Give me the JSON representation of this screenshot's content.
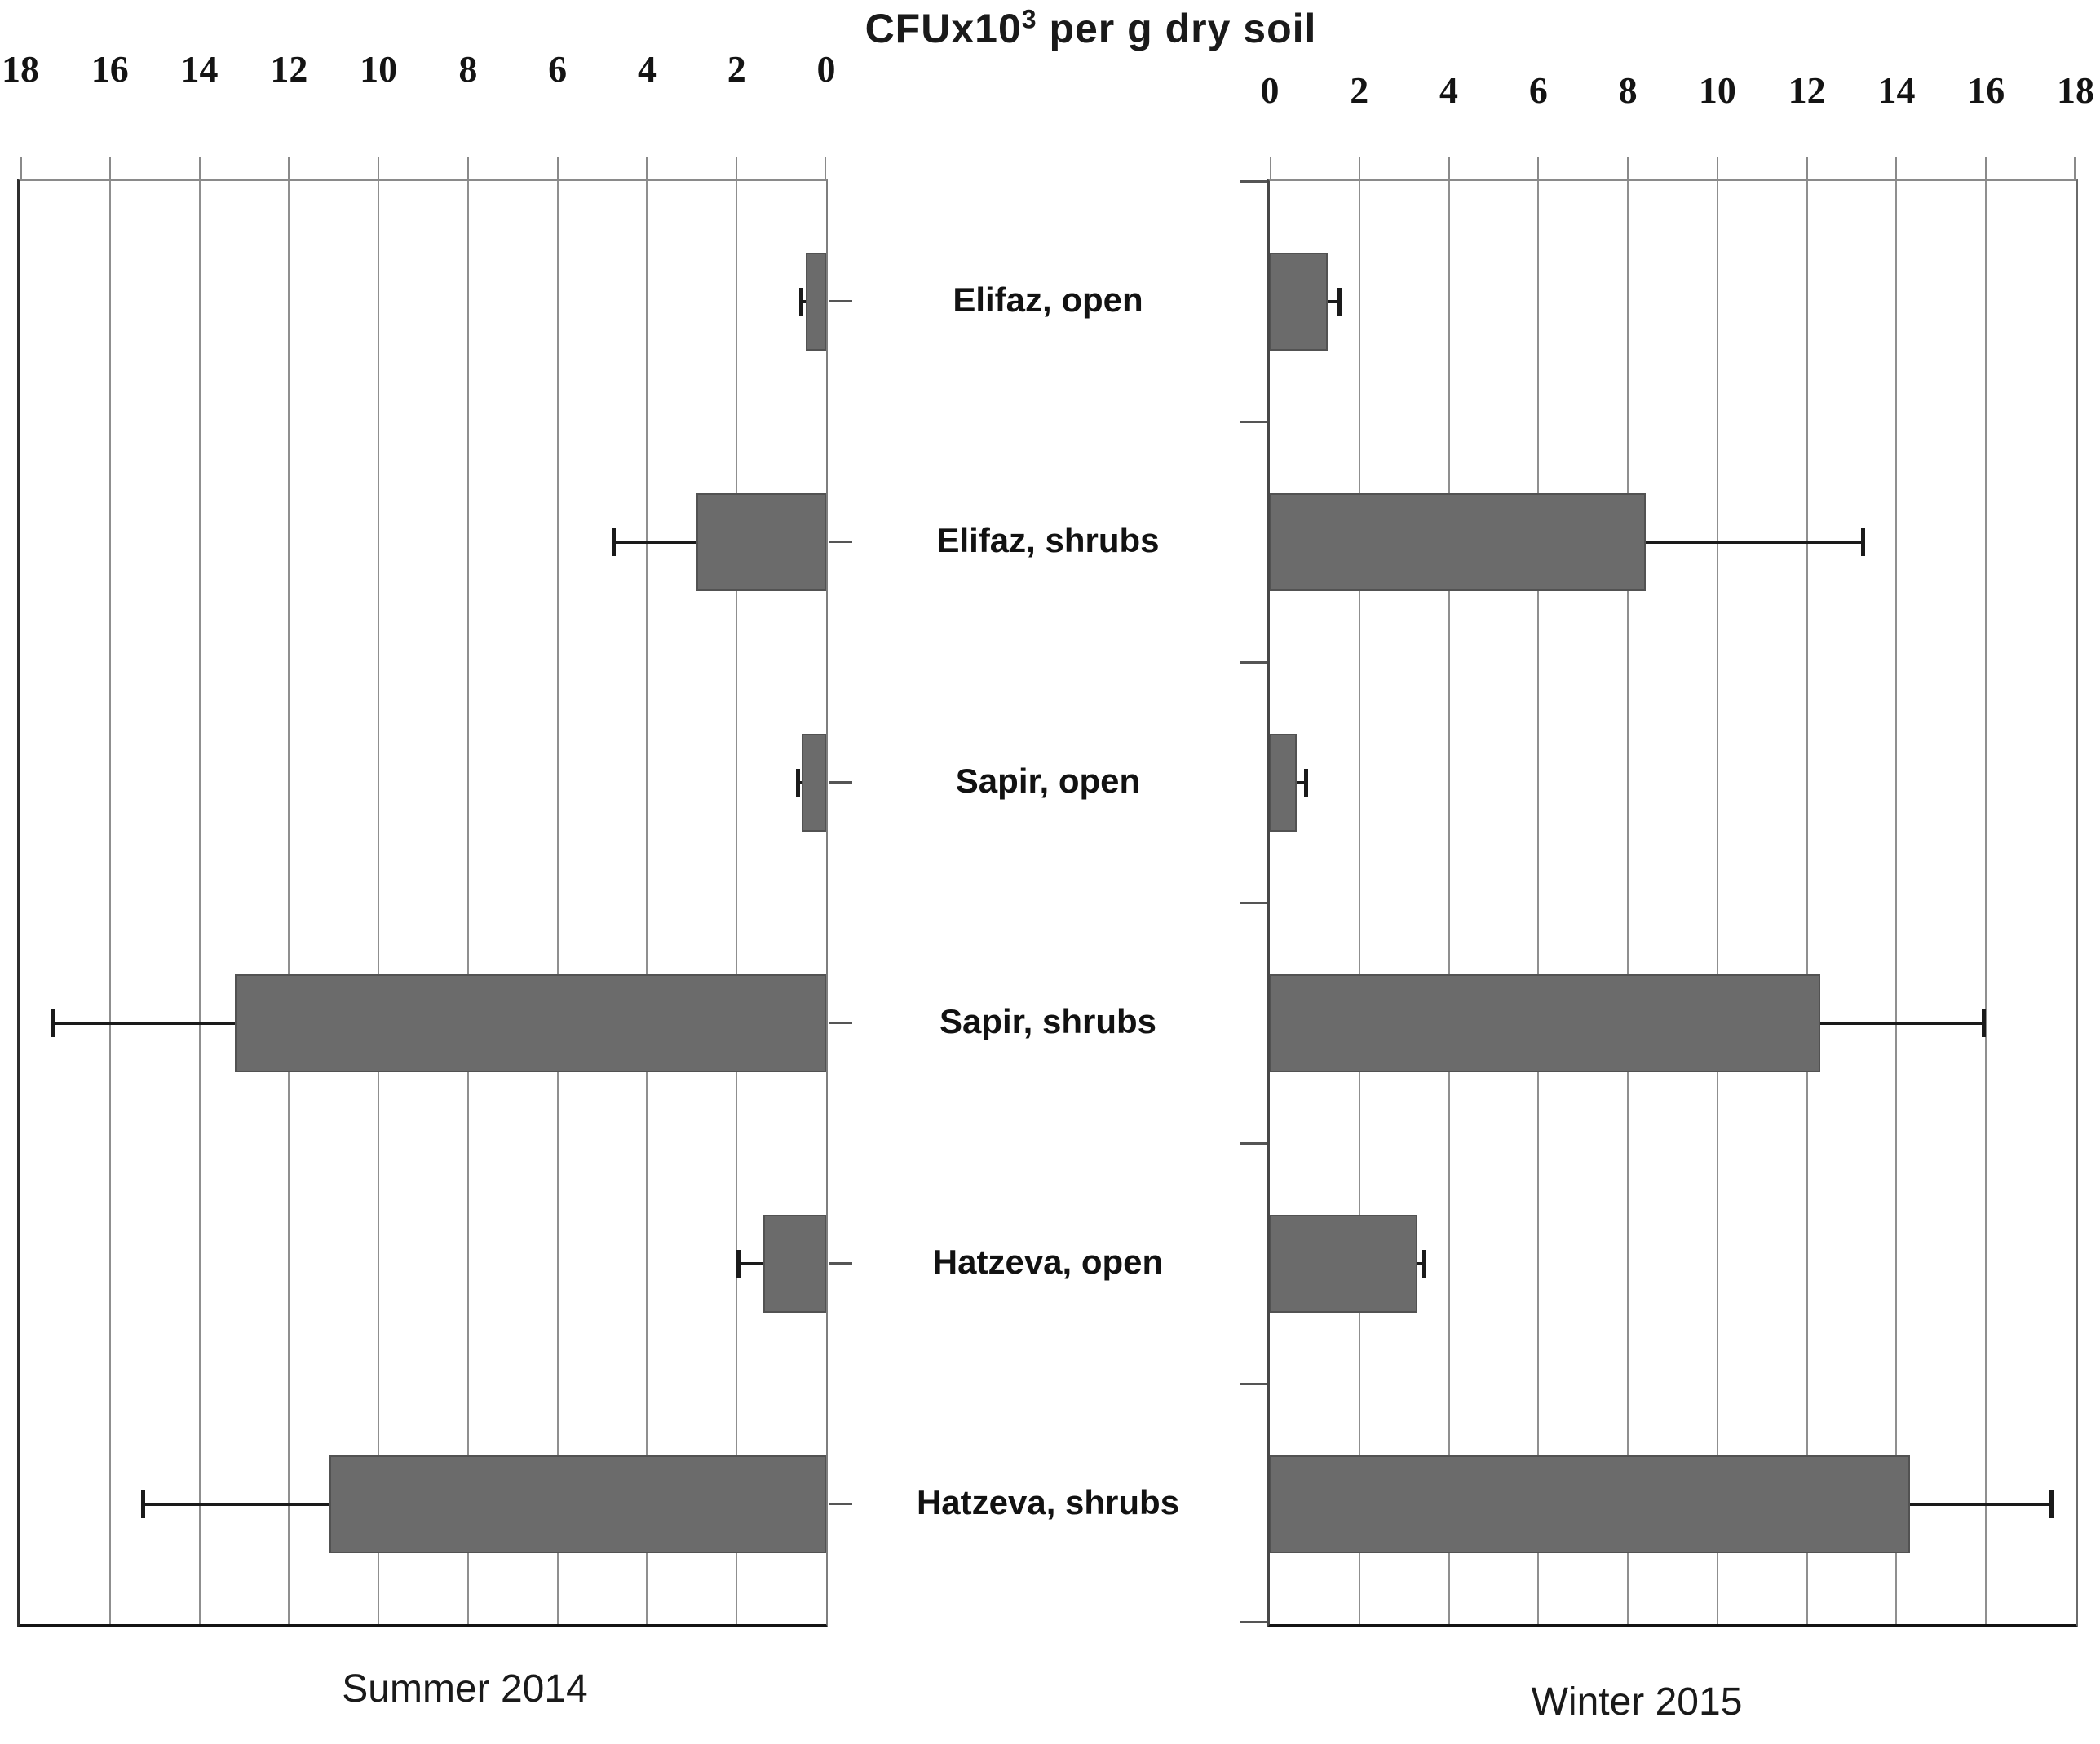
{
  "title": {
    "prefix": "CFUx10",
    "superscript": "3",
    "suffix": " per g dry soil"
  },
  "captions": {
    "left": "Summer 2014",
    "right": "Winter 2015"
  },
  "categories": [
    "Elifaz, open",
    "Elifaz, shrubs",
    "Sapir, open",
    "Sapir, shrubs",
    "Hatzeva, open",
    "Hatzeva, shrubs"
  ],
  "colors": {
    "bar_fill": "#6b6b6b",
    "bar_border": "#525252",
    "gridline": "#8f8f8f",
    "zero_axis": "#474747",
    "bottom_axis": "#141414",
    "error_bar": "#1a1a1a",
    "text": "#161616"
  },
  "chart_data": [
    {
      "type": "bar",
      "orientation": "horizontal",
      "panel": "Summer 2014",
      "axis_direction": "right-to-left",
      "axis_title": "CFUx10³ per g dry soil",
      "xlim": [
        0,
        18
      ],
      "tick_step": 2,
      "ticks": [
        18,
        16,
        14,
        12,
        10,
        8,
        6,
        4,
        2,
        0
      ],
      "grid": true,
      "categories": [
        "Elifaz, open",
        "Elifaz, shrubs",
        "Sapir, open",
        "Sapir, shrubs",
        "Hatzeva, open",
        "Hatzeva, shrubs"
      ],
      "values": [
        0.45,
        2.9,
        0.55,
        13.2,
        1.4,
        11.1
      ],
      "errors": [
        0.15,
        1.9,
        0.12,
        4.1,
        0.6,
        4.2
      ]
    },
    {
      "type": "bar",
      "orientation": "horizontal",
      "panel": "Winter 2015",
      "axis_direction": "left-to-right",
      "axis_title": "CFUx10³ per g dry soil",
      "xlim": [
        0,
        18
      ],
      "tick_step": 2,
      "ticks": [
        0,
        2,
        4,
        6,
        8,
        10,
        12,
        14,
        16,
        18
      ],
      "grid": true,
      "categories": [
        "Elifaz, open",
        "Elifaz, shrubs",
        "Sapir, open",
        "Sapir, shrubs",
        "Hatzeva, open",
        "Hatzeva, shrubs"
      ],
      "values": [
        1.3,
        8.4,
        0.6,
        12.3,
        3.3,
        14.3
      ],
      "errors": [
        0.3,
        4.9,
        0.25,
        3.7,
        0.2,
        3.2
      ]
    }
  ]
}
